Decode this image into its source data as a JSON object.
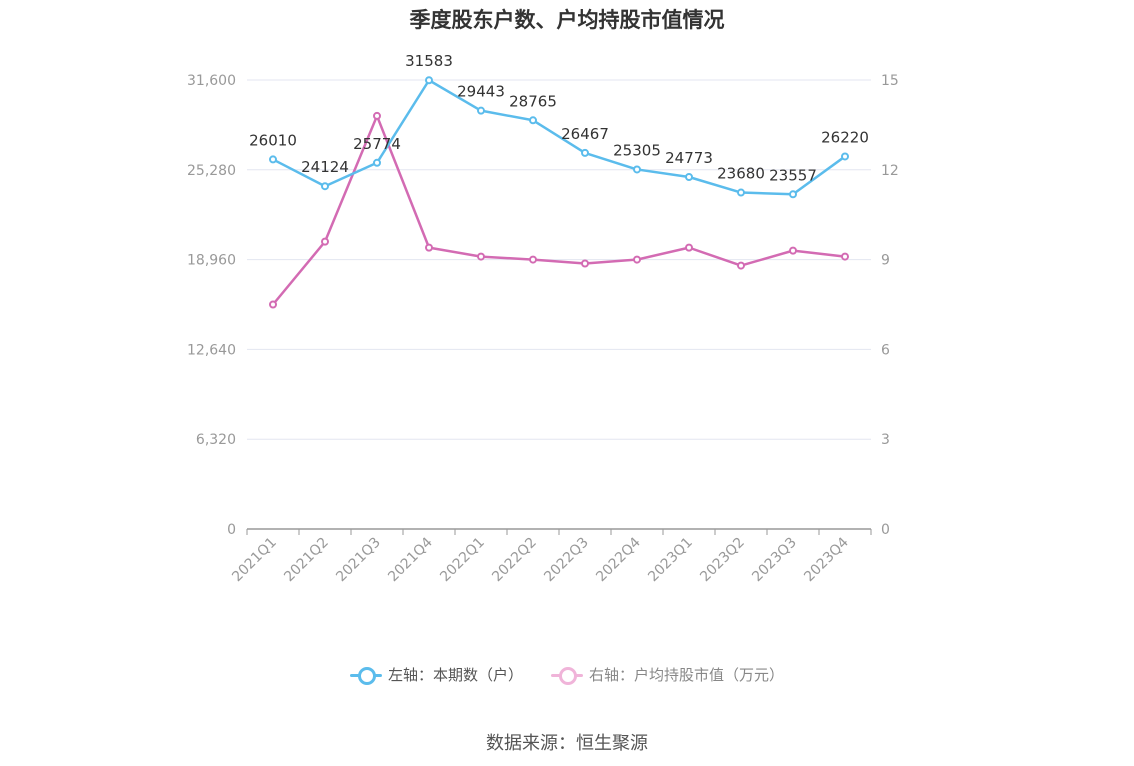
{
  "title": "季度股东户数、户均持股市值情况",
  "source": "数据来源：恒生聚源",
  "colors": {
    "left_series": "#5bbcec",
    "right_series": "#d36bb3",
    "grid": "#e3e6f0",
    "axis": "#999999"
  },
  "chart_data": {
    "type": "line",
    "title": "季度股东户数、户均持股市值情况",
    "categories": [
      "2021Q1",
      "2021Q2",
      "2021Q3",
      "2021Q4",
      "2022Q1",
      "2022Q2",
      "2022Q3",
      "2022Q4",
      "2023Q1",
      "2023Q2",
      "2023Q3",
      "2023Q4"
    ],
    "y_left": {
      "min": 0,
      "max": 31600,
      "ticks": [
        "0",
        "6,320",
        "12,640",
        "18,960",
        "25,280",
        "31,600"
      ]
    },
    "y_right": {
      "min": 0,
      "max": 15,
      "ticks": [
        "0",
        "3",
        "6",
        "9",
        "12",
        "15"
      ]
    },
    "grid": true,
    "legend_position": "bottom",
    "series": [
      {
        "name": "左轴：本期数（户）",
        "axis": "left",
        "values": [
          26010,
          24124,
          25774,
          31583,
          29443,
          28765,
          26467,
          25305,
          24773,
          23680,
          23557,
          26220
        ],
        "labels_shown": true
      },
      {
        "name": "右轴：户均持股市值（万元）",
        "axis": "right",
        "values": [
          7.5,
          9.6,
          13.8,
          9.4,
          9.1,
          9.0,
          8.87,
          9.0,
          9.4,
          8.8,
          9.3,
          9.1
        ],
        "labels_shown": false
      }
    ]
  }
}
